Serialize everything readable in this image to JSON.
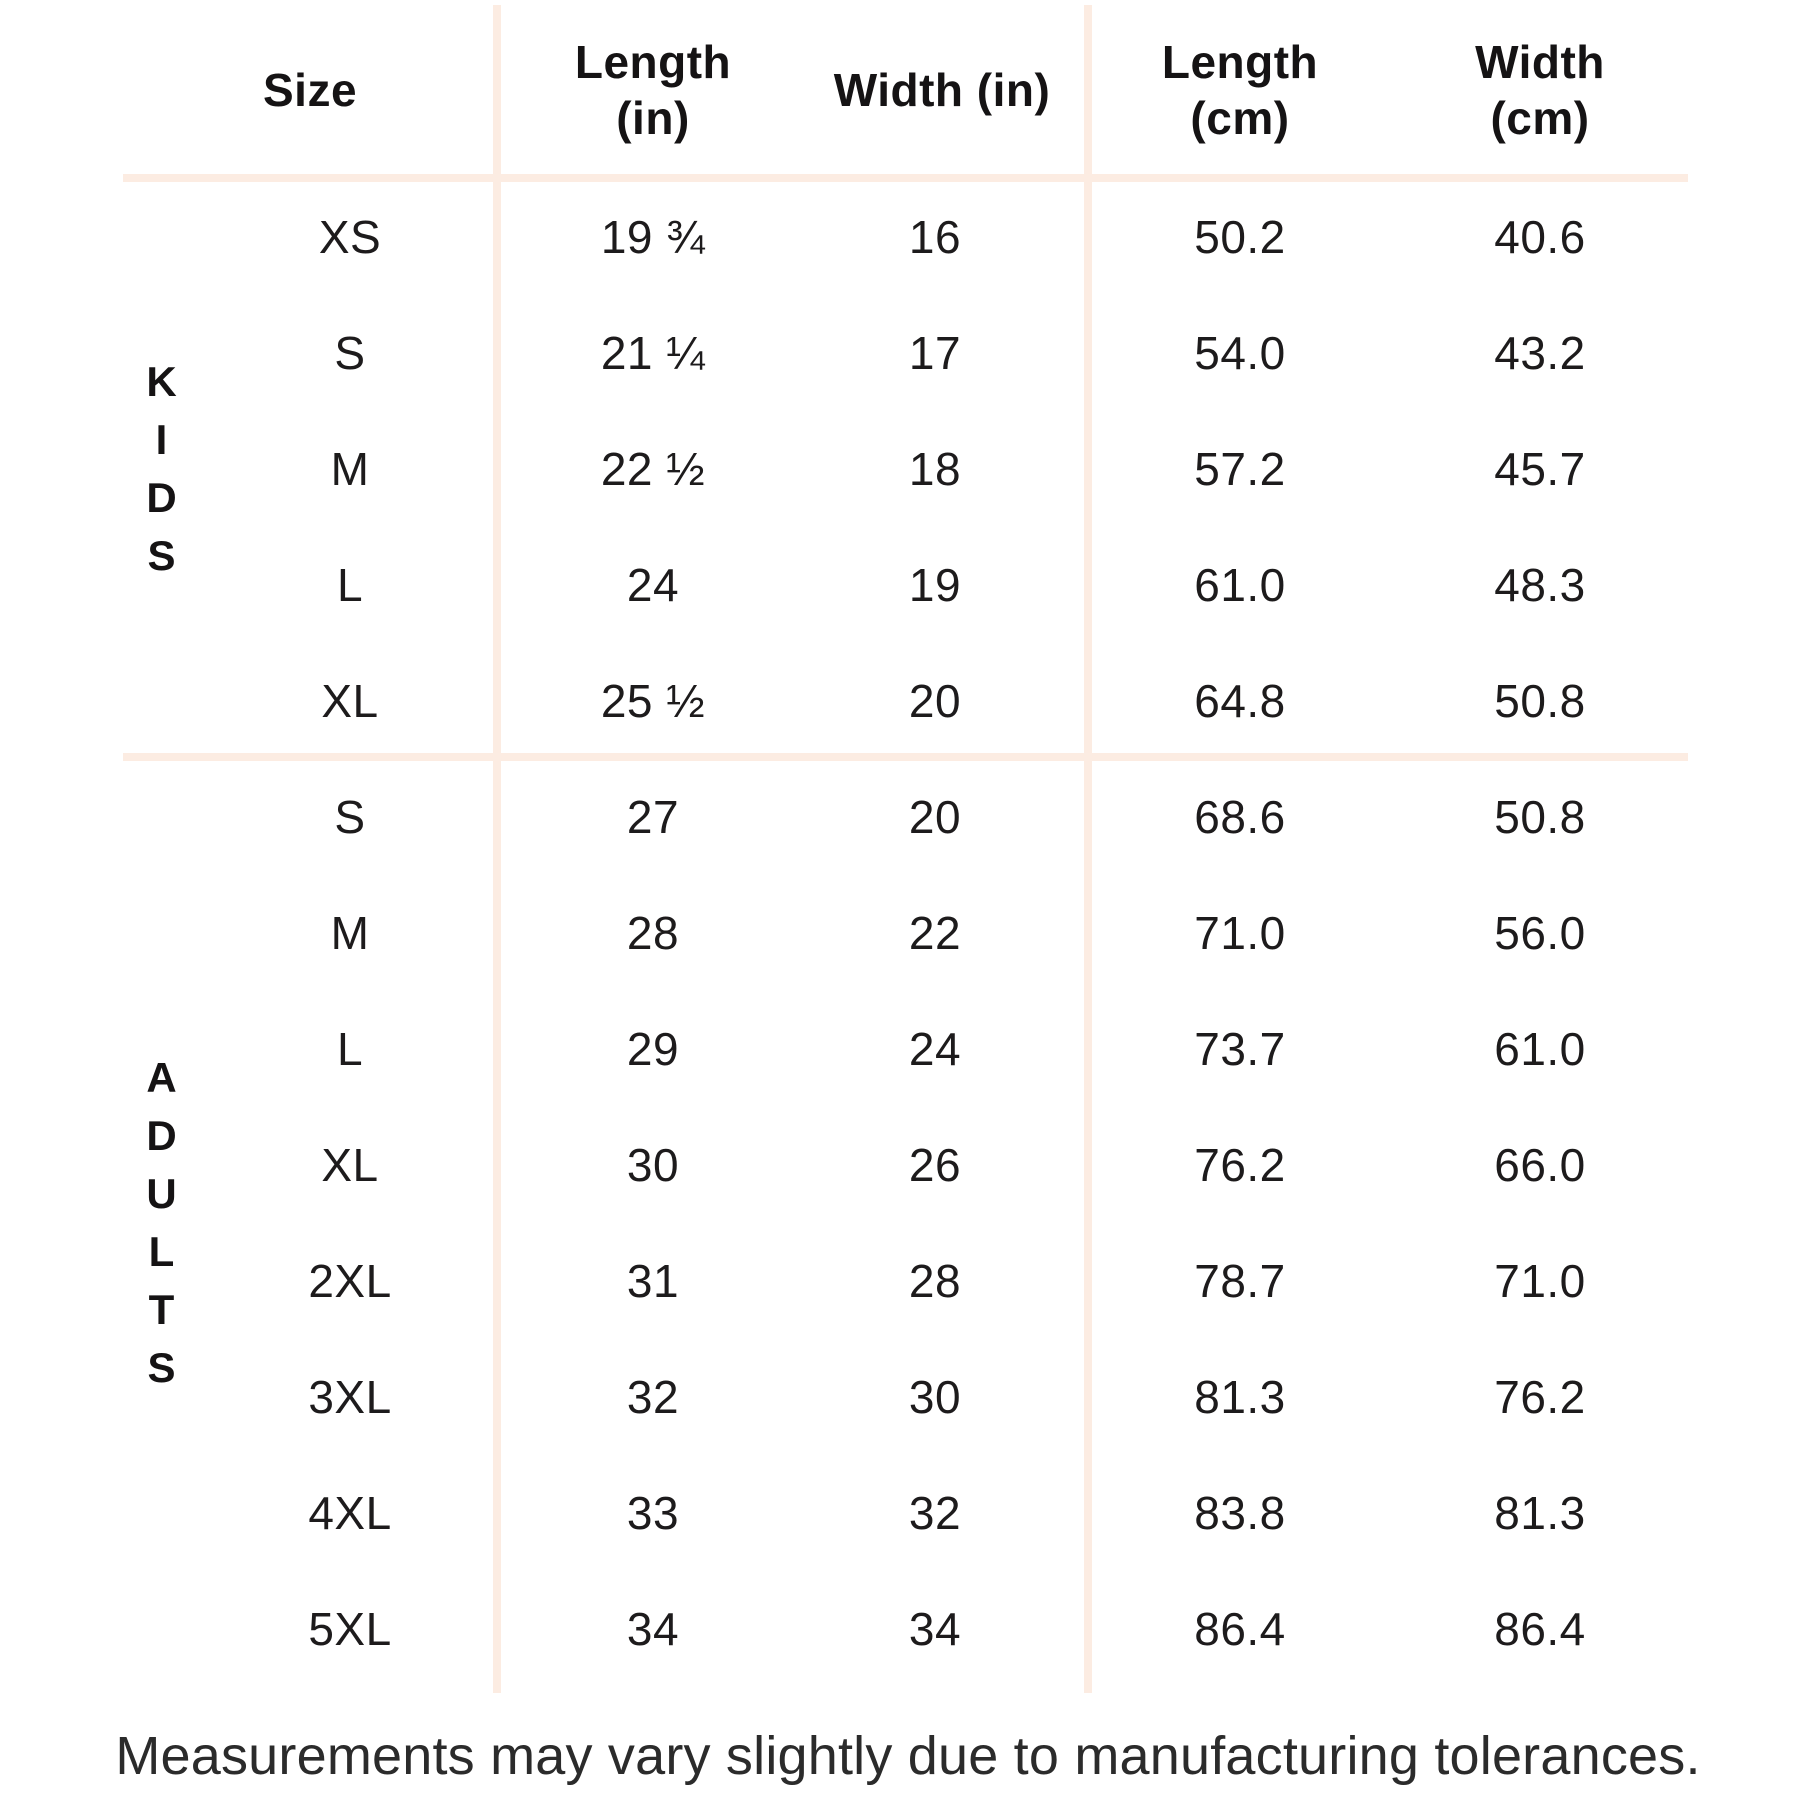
{
  "table": {
    "headers": {
      "size": "Size",
      "length_in": [
        "Length",
        "(in)"
      ],
      "width_in": "Width (in)",
      "length_cm": [
        "Length",
        "(cm)"
      ],
      "width_cm": [
        "Width",
        "(cm)"
      ]
    },
    "groups": [
      {
        "label": "KIDS",
        "rows": [
          {
            "size": "XS",
            "length_in": "19 ¾",
            "width_in": "16",
            "length_cm": "50.2",
            "width_cm": "40.6"
          },
          {
            "size": "S",
            "length_in": "21 ¼",
            "width_in": "17",
            "length_cm": "54.0",
            "width_cm": "43.2"
          },
          {
            "size": "M",
            "length_in": "22 ½",
            "width_in": "18",
            "length_cm": "57.2",
            "width_cm": "45.7"
          },
          {
            "size": "L",
            "length_in": "24",
            "width_in": "19",
            "length_cm": "61.0",
            "width_cm": "48.3"
          },
          {
            "size": "XL",
            "length_in": "25 ½",
            "width_in": "20",
            "length_cm": "64.8",
            "width_cm": "50.8"
          }
        ]
      },
      {
        "label": "ADULTS",
        "rows": [
          {
            "size": "S",
            "length_in": "27",
            "width_in": "20",
            "length_cm": "68.6",
            "width_cm": "50.8"
          },
          {
            "size": "M",
            "length_in": "28",
            "width_in": "22",
            "length_cm": "71.0",
            "width_cm": "56.0"
          },
          {
            "size": "L",
            "length_in": "29",
            "width_in": "24",
            "length_cm": "73.7",
            "width_cm": "61.0"
          },
          {
            "size": "XL",
            "length_in": "30",
            "width_in": "26",
            "length_cm": "76.2",
            "width_cm": "66.0"
          },
          {
            "size": "2XL",
            "length_in": "31",
            "width_in": "28",
            "length_cm": "78.7",
            "width_cm": "71.0"
          },
          {
            "size": "3XL",
            "length_in": "32",
            "width_in": "30",
            "length_cm": "81.3",
            "width_cm": "76.2"
          },
          {
            "size": "4XL",
            "length_in": "33",
            "width_in": "32",
            "length_cm": "83.8",
            "width_cm": "81.3"
          },
          {
            "size": "5XL",
            "length_in": "34",
            "width_in": "34",
            "length_cm": "86.4",
            "width_cm": "86.4"
          }
        ]
      }
    ]
  },
  "footer": {
    "note": "Measurements may vary slightly due to manufacturing tolerances."
  },
  "colors": {
    "divider": "#FCECE2",
    "text": "#1D1B1C"
  }
}
